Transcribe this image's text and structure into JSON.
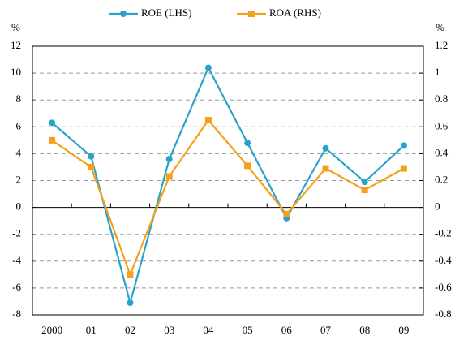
{
  "chart_data": {
    "type": "line",
    "y_label": "%",
    "y2_label": "%",
    "categories": [
      "2000",
      "01",
      "02",
      "03",
      "04",
      "05",
      "06",
      "07",
      "08",
      "09"
    ],
    "series": [
      {
        "name": "ROE (LHS)",
        "color": "#29a3c9",
        "marker": "circle",
        "values": [
          6.3,
          3.8,
          -7.1,
          3.6,
          10.4,
          4.8,
          -0.8,
          4.4,
          1.9,
          4.6
        ]
      },
      {
        "name": "ROA (RHS)",
        "color": "#f5a01a",
        "marker": "square",
        "axis": "y2",
        "values": [
          0.5,
          0.3,
          -0.5,
          0.23,
          0.65,
          0.31,
          -0.05,
          0.29,
          0.13,
          0.29
        ]
      }
    ],
    "ylim": [
      -8,
      12
    ],
    "yticks": [
      -8,
      -6,
      -4,
      -2,
      0,
      2,
      4,
      6,
      8,
      10,
      12
    ],
    "y2lim": [
      -0.8,
      1.2
    ],
    "y2ticks": [
      -0.8,
      -0.6,
      -0.4,
      -0.2,
      0,
      0.2,
      0.4,
      0.6,
      0.8,
      1,
      1.2
    ],
    "grid": true,
    "legend": "top"
  }
}
